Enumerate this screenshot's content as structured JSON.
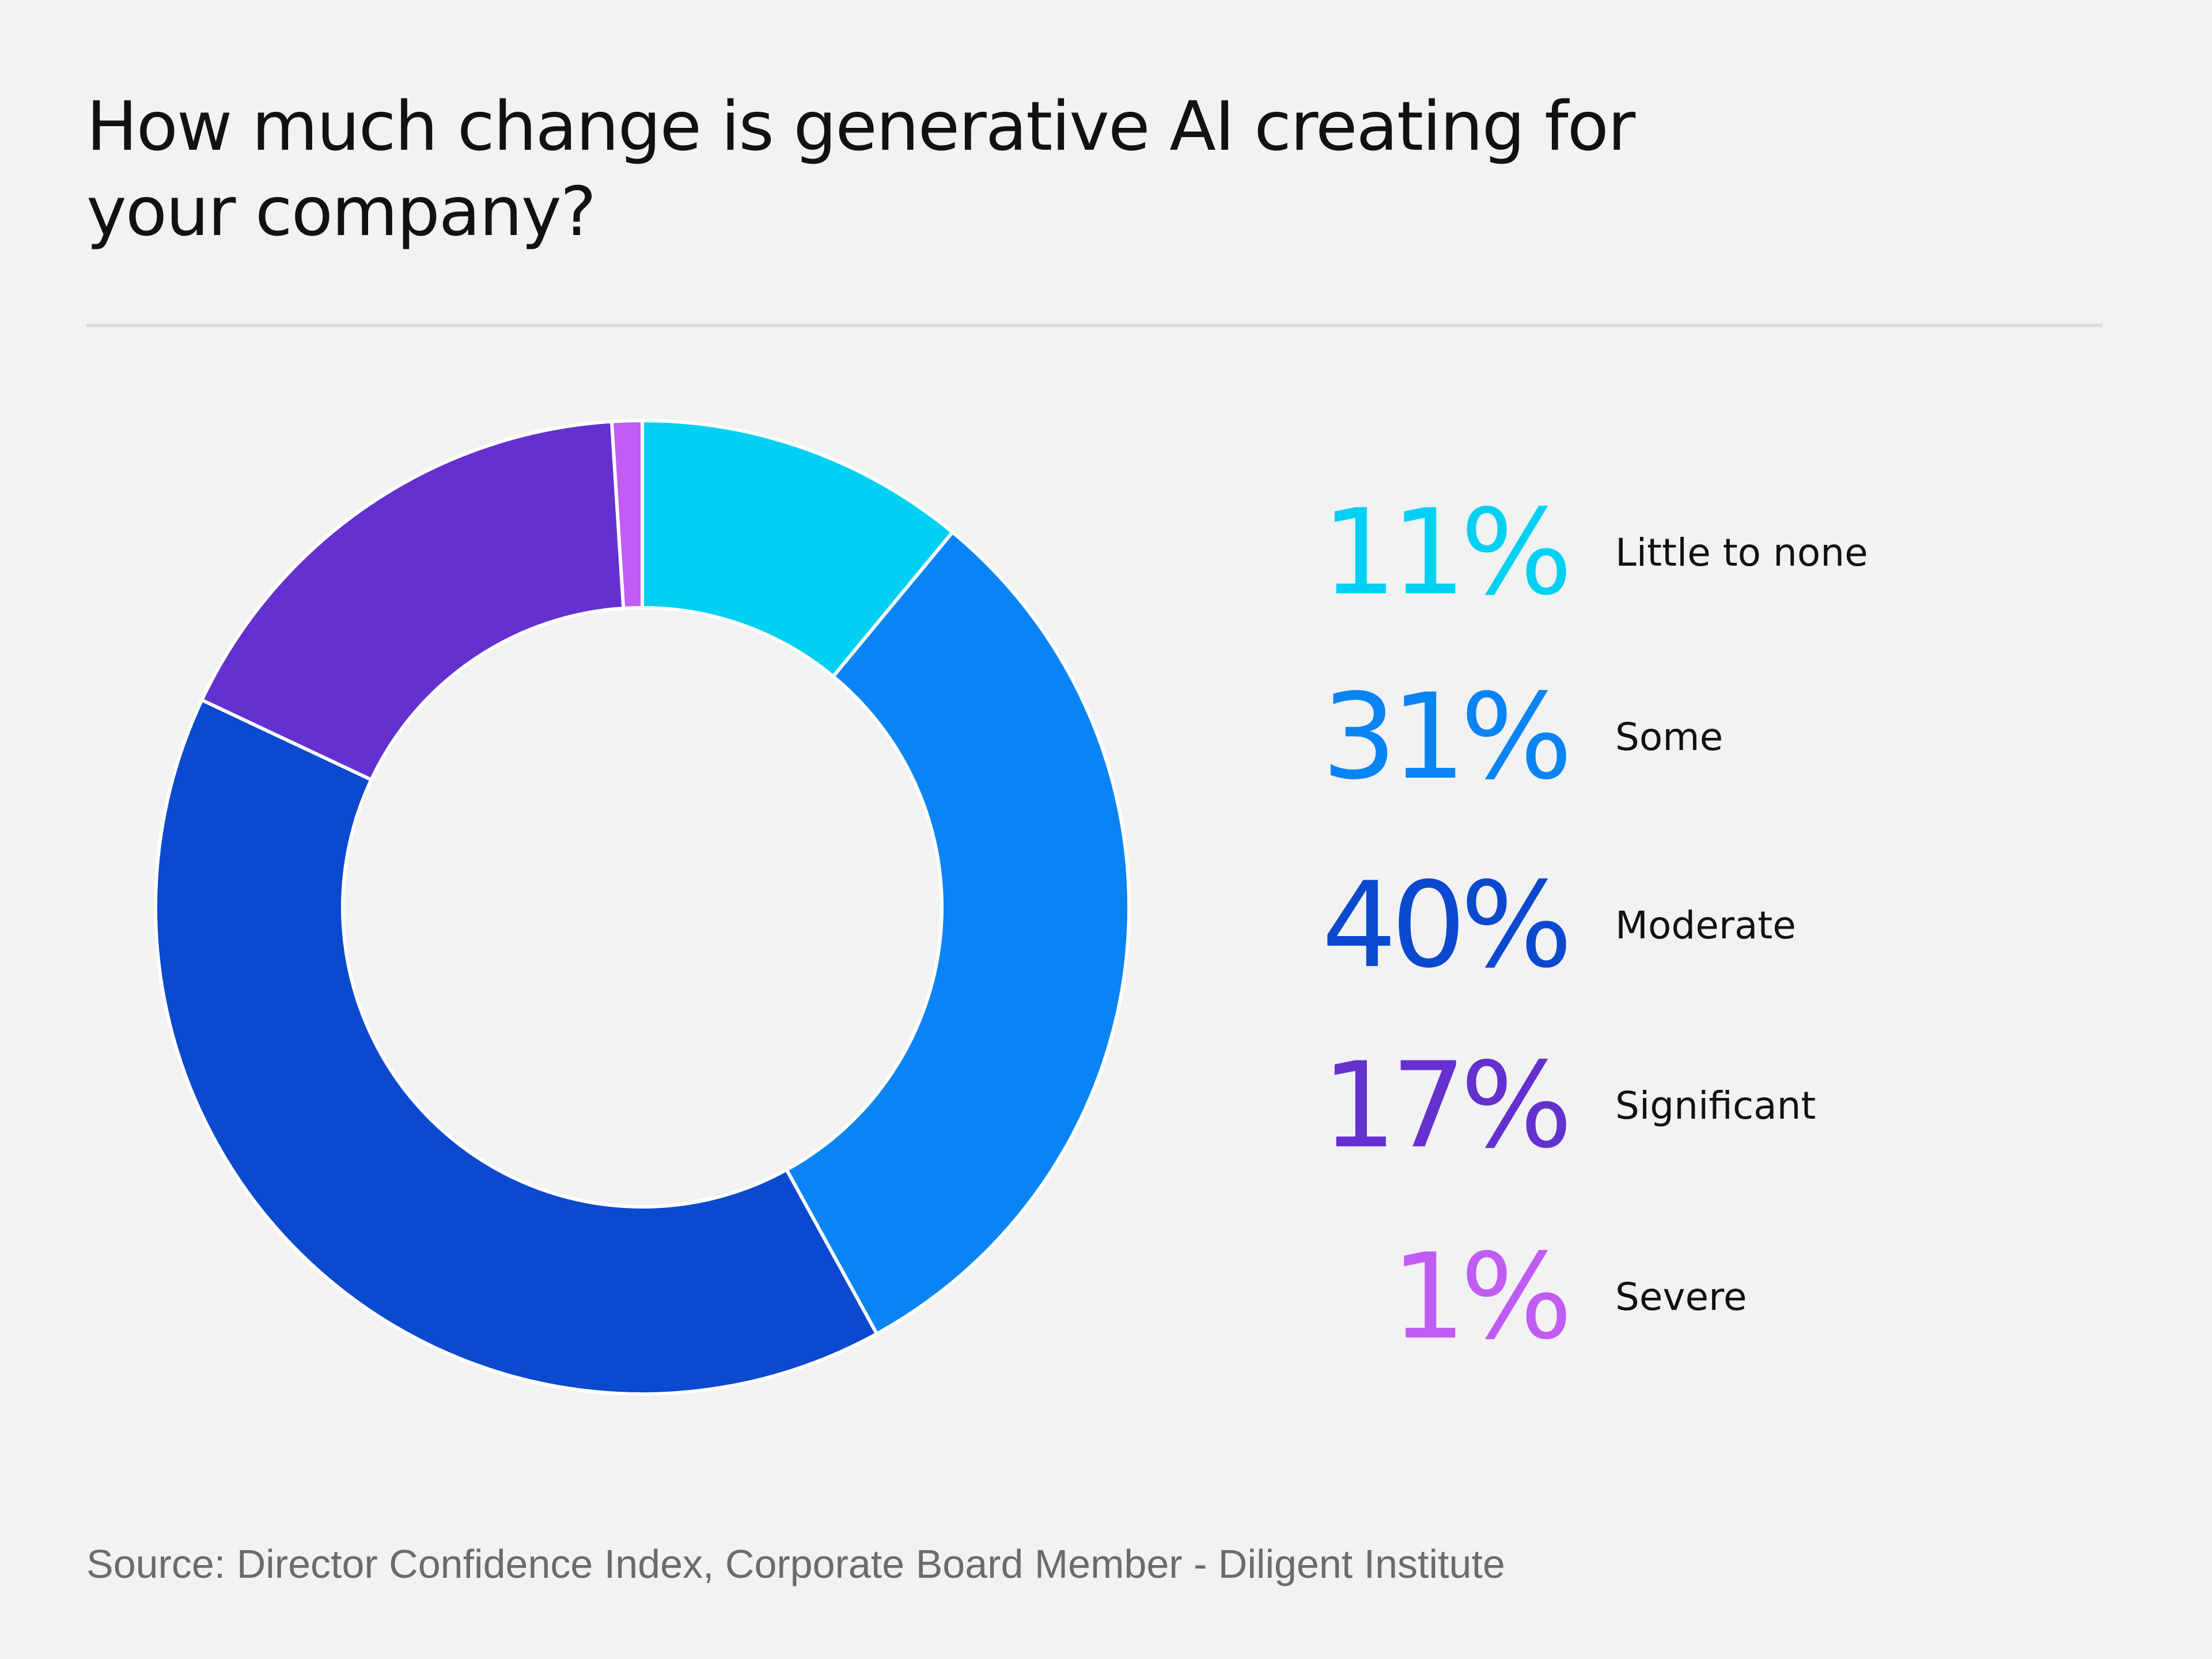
{
  "chart_data": {
    "type": "pie",
    "variant": "donut",
    "title": "How much change is generative AI creating for your company?",
    "categories": [
      "Little to none",
      "Some",
      "Moderate",
      "Significant",
      "Severe"
    ],
    "values": [
      11,
      31,
      40,
      17,
      1
    ],
    "value_labels": [
      "11%",
      "31%",
      "40%",
      "17%",
      "1%"
    ],
    "unit": "%",
    "colors": [
      "#00d1f2",
      "#0a84f5",
      "#0b49cf",
      "#6430cf",
      "#c05cf4"
    ],
    "start_angle_deg": 0,
    "direction": "clockwise",
    "legend_placement": "right"
  },
  "source": "Source: Director Confidence Index, Corporate Board Member - Diligent Institute",
  "colors": {
    "background": "#f2f2f2",
    "divider": "#dcdcdc",
    "slice_separator": "#ffffff",
    "source_text": "#6b6b6b"
  }
}
